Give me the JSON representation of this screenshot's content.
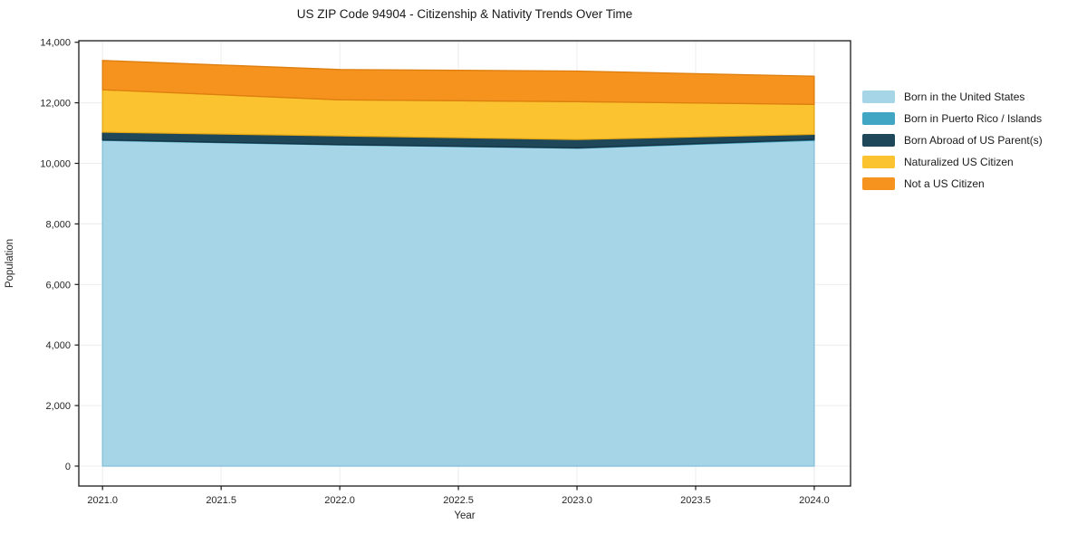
{
  "title": "US ZIP Code 94904 - Citizenship & Nativity Trends Over Time",
  "chart_data": {
    "type": "area",
    "stacked": true,
    "title": "US ZIP Code 94904 - Citizenship & Nativity Trends Over Time",
    "xlabel": "Year",
    "ylabel": "Population",
    "x": [
      2021,
      2022,
      2023,
      2024
    ],
    "series": [
      {
        "name": "Born in the United States",
        "color": "#a6d5e8",
        "edge": "#84bfd9",
        "values": [
          10760,
          10610,
          10500,
          10760
        ]
      },
      {
        "name": "Born in Puerto Rico / Islands",
        "color": "#41a6c4",
        "edge": "#2e8aa8",
        "values": [
          15,
          10,
          10,
          30
        ]
      },
      {
        "name": "Born Abroad of US Parent(s)",
        "color": "#1f475a",
        "edge": "#153342",
        "values": [
          255,
          290,
          280,
          170
        ]
      },
      {
        "name": "Naturalized US Citizen",
        "color": "#fcc330",
        "edge": "#e3a816",
        "values": [
          1400,
          1190,
          1250,
          990
        ]
      },
      {
        "name": "Not a US Citizen",
        "color": "#f6931e",
        "edge": "#dd7e0e",
        "values": [
          970,
          1000,
          1010,
          930
        ]
      }
    ],
    "totals": [
      13400,
      13100,
      13050,
      12880
    ],
    "xticks": [
      2021.0,
      2021.5,
      2022.0,
      2022.5,
      2023.0,
      2023.5,
      2024.0
    ],
    "yticks": [
      0,
      2000,
      4000,
      6000,
      8000,
      10000,
      12000,
      14000
    ],
    "xlim": [
      2020.9,
      2024.153
    ],
    "ylim": [
      -658,
      14051
    ],
    "grid": true,
    "grid_color": "#ececec",
    "spine_color": "#1a1a1a",
    "tick_label_color": "#262626",
    "legend_position": "outside-right",
    "background": "#ffffff"
  }
}
